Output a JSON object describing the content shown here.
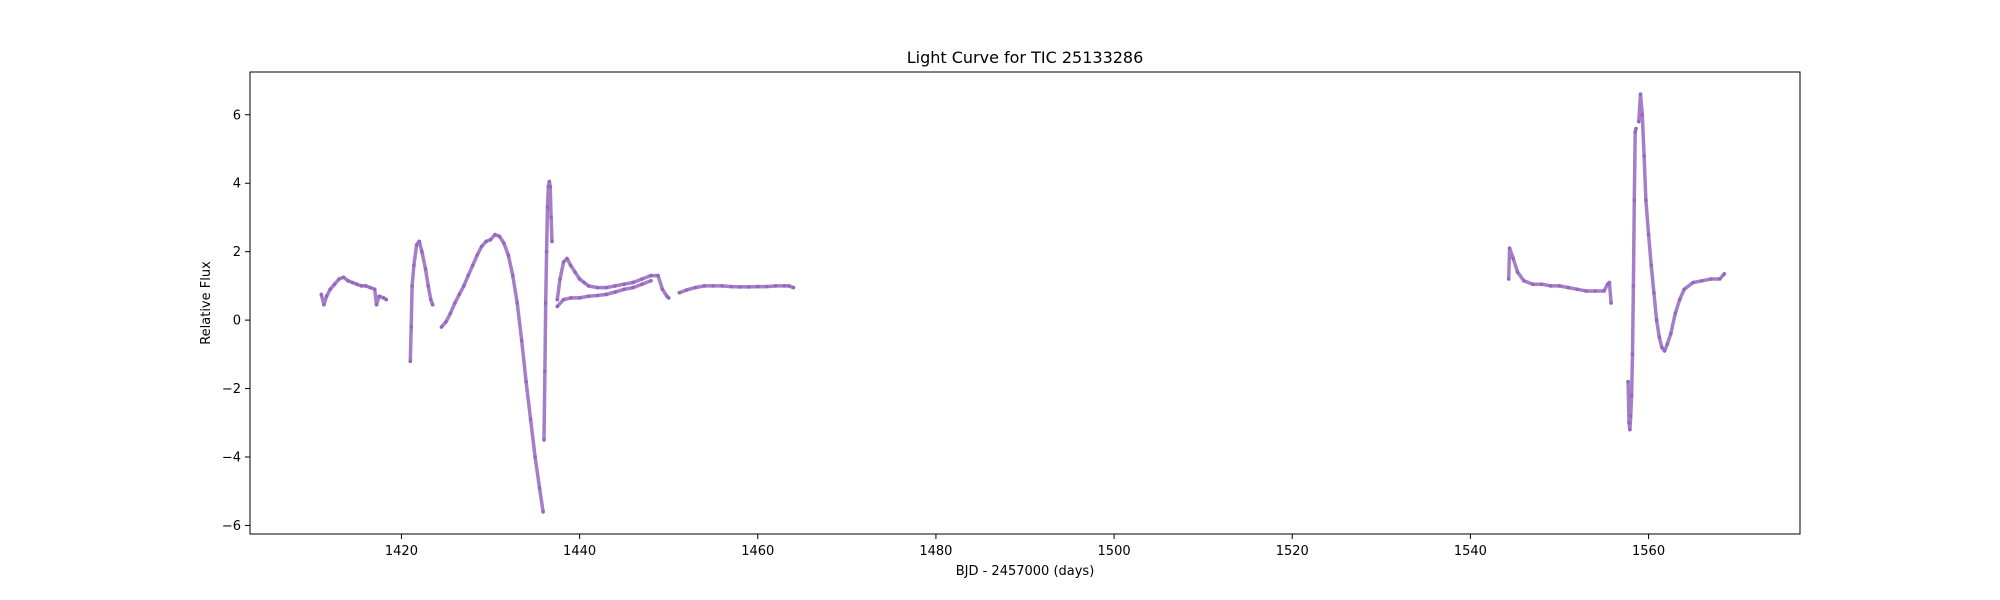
{
  "chart_data": {
    "type": "scatter",
    "title": "Light Curve for TIC 25133286",
    "xlabel": "BJD - 2457000 (days)",
    "ylabel": "Relative Flux",
    "xlim": [
      1403,
      1577
    ],
    "ylim": [
      -6.25,
      7.25
    ],
    "xticks": [
      1420,
      1440,
      1460,
      1480,
      1500,
      1520,
      1540,
      1560
    ],
    "yticks": [
      -6,
      -4,
      -2,
      0,
      2,
      4,
      6
    ],
    "grid": false,
    "legend": "none",
    "marker_color": "#9467bd",
    "series": [
      {
        "points": [
          [
            1411.0,
            0.75
          ],
          [
            1411.3,
            0.45
          ],
          [
            1411.6,
            0.7
          ],
          [
            1412.0,
            0.9
          ],
          [
            1412.5,
            1.05
          ],
          [
            1413.0,
            1.2
          ],
          [
            1413.5,
            1.25
          ],
          [
            1414.0,
            1.15
          ],
          [
            1414.5,
            1.1
          ],
          [
            1415.0,
            1.05
          ],
          [
            1415.5,
            1.0
          ],
          [
            1416.0,
            1.0
          ],
          [
            1416.5,
            0.95
          ],
          [
            1417.0,
            0.9
          ],
          [
            1417.2,
            0.45
          ],
          [
            1417.5,
            0.7
          ],
          [
            1418.0,
            0.65
          ],
          [
            1418.3,
            0.6
          ]
        ]
      },
      {
        "points": [
          [
            1421.0,
            -1.2
          ],
          [
            1421.1,
            -0.2
          ],
          [
            1421.2,
            1.0
          ],
          [
            1421.4,
            1.6
          ],
          [
            1421.7,
            2.2
          ],
          [
            1422.0,
            2.3
          ],
          [
            1422.3,
            2.0
          ],
          [
            1422.7,
            1.5
          ],
          [
            1423.0,
            1.0
          ],
          [
            1423.3,
            0.6
          ],
          [
            1423.5,
            0.45
          ]
        ]
      },
      {
        "points": [
          [
            1424.5,
            -0.2
          ],
          [
            1425.0,
            -0.05
          ],
          [
            1425.5,
            0.2
          ],
          [
            1426.0,
            0.5
          ],
          [
            1426.5,
            0.75
          ],
          [
            1427.0,
            1.0
          ],
          [
            1427.5,
            1.3
          ],
          [
            1428.0,
            1.6
          ],
          [
            1428.5,
            1.9
          ],
          [
            1429.0,
            2.15
          ],
          [
            1429.5,
            2.3
          ],
          [
            1430.0,
            2.35
          ],
          [
            1430.5,
            2.5
          ],
          [
            1431.0,
            2.45
          ],
          [
            1431.5,
            2.25
          ],
          [
            1432.0,
            1.9
          ],
          [
            1432.5,
            1.3
          ],
          [
            1433.0,
            0.5
          ],
          [
            1433.5,
            -0.6
          ],
          [
            1434.0,
            -1.8
          ],
          [
            1434.5,
            -2.9
          ],
          [
            1435.0,
            -4.0
          ],
          [
            1435.5,
            -4.9
          ],
          [
            1435.9,
            -5.6
          ]
        ]
      },
      {
        "points": [
          [
            1436.0,
            -3.5
          ],
          [
            1436.1,
            -1.5
          ],
          [
            1436.2,
            0.5
          ],
          [
            1436.3,
            2.0
          ],
          [
            1436.4,
            3.3
          ],
          [
            1436.5,
            3.9
          ],
          [
            1436.6,
            4.05
          ],
          [
            1436.7,
            3.9
          ],
          [
            1436.8,
            3.0
          ],
          [
            1436.9,
            2.3
          ]
        ]
      },
      {
        "points": [
          [
            1437.5,
            0.6
          ],
          [
            1437.8,
            1.2
          ],
          [
            1438.2,
            1.7
          ],
          [
            1438.6,
            1.8
          ],
          [
            1439.0,
            1.6
          ],
          [
            1439.5,
            1.4
          ],
          [
            1440.0,
            1.2
          ],
          [
            1440.5,
            1.1
          ],
          [
            1441.0,
            1.0
          ],
          [
            1442.0,
            0.95
          ],
          [
            1443.0,
            0.95
          ],
          [
            1444.0,
            1.0
          ],
          [
            1445.0,
            1.05
          ],
          [
            1446.0,
            1.1
          ],
          [
            1447.0,
            1.2
          ],
          [
            1448.0,
            1.3
          ],
          [
            1448.8,
            1.3
          ],
          [
            1449.3,
            0.9
          ],
          [
            1449.8,
            0.7
          ],
          [
            1450.0,
            0.65
          ]
        ]
      },
      {
        "points": [
          [
            1437.5,
            0.4
          ],
          [
            1438.2,
            0.6
          ],
          [
            1439.0,
            0.65
          ],
          [
            1440.0,
            0.65
          ],
          [
            1441.0,
            0.7
          ],
          [
            1442.0,
            0.72
          ],
          [
            1443.0,
            0.75
          ],
          [
            1444.0,
            0.82
          ],
          [
            1445.0,
            0.9
          ],
          [
            1446.0,
            0.95
          ],
          [
            1447.0,
            1.05
          ],
          [
            1448.0,
            1.15
          ]
        ]
      },
      {
        "points": [
          [
            1451.2,
            0.8
          ],
          [
            1452.0,
            0.88
          ],
          [
            1453.0,
            0.95
          ],
          [
            1454.0,
            1.0
          ],
          [
            1455.0,
            1.0
          ],
          [
            1456.0,
            1.0
          ],
          [
            1457.0,
            0.98
          ],
          [
            1458.0,
            0.97
          ],
          [
            1459.0,
            0.97
          ],
          [
            1460.0,
            0.98
          ],
          [
            1461.0,
            0.98
          ],
          [
            1462.0,
            1.0
          ],
          [
            1463.0,
            1.0
          ],
          [
            1463.5,
            1.0
          ],
          [
            1464.0,
            0.95
          ]
        ]
      },
      {
        "points": [
          [
            1544.3,
            1.2
          ],
          [
            1544.4,
            2.1
          ],
          [
            1544.8,
            1.8
          ],
          [
            1545.3,
            1.4
          ],
          [
            1546.0,
            1.15
          ],
          [
            1547.0,
            1.05
          ],
          [
            1548.0,
            1.05
          ],
          [
            1549.0,
            1.0
          ],
          [
            1550.0,
            1.0
          ],
          [
            1551.0,
            0.95
          ],
          [
            1552.0,
            0.9
          ],
          [
            1553.0,
            0.85
          ],
          [
            1554.0,
            0.85
          ],
          [
            1555.0,
            0.85
          ],
          [
            1555.4,
            1.05
          ],
          [
            1555.6,
            1.1
          ],
          [
            1555.8,
            0.5
          ]
        ]
      },
      {
        "points": [
          [
            1557.7,
            -1.8
          ],
          [
            1557.8,
            -3.0
          ],
          [
            1557.9,
            -3.2
          ],
          [
            1558.0,
            -2.8
          ],
          [
            1558.1,
            -2.2
          ],
          [
            1558.2,
            -1.0
          ],
          [
            1558.3,
            1.0
          ],
          [
            1558.4,
            3.5
          ],
          [
            1558.5,
            5.5
          ],
          [
            1558.6,
            5.6
          ]
        ]
      },
      {
        "points": [
          [
            1558.9,
            5.8
          ],
          [
            1559.1,
            6.6
          ],
          [
            1559.3,
            6.0
          ],
          [
            1559.5,
            4.8
          ],
          [
            1559.7,
            3.5
          ],
          [
            1560.0,
            2.5
          ],
          [
            1560.3,
            1.6
          ],
          [
            1560.6,
            0.8
          ],
          [
            1560.9,
            0.0
          ],
          [
            1561.2,
            -0.5
          ],
          [
            1561.5,
            -0.8
          ],
          [
            1561.8,
            -0.9
          ],
          [
            1562.1,
            -0.7
          ],
          [
            1562.5,
            -0.4
          ],
          [
            1563.0,
            0.2
          ],
          [
            1563.5,
            0.6
          ],
          [
            1564.0,
            0.9
          ],
          [
            1565.0,
            1.1
          ],
          [
            1566.0,
            1.15
          ],
          [
            1567.0,
            1.2
          ],
          [
            1568.0,
            1.2
          ],
          [
            1568.5,
            1.35
          ]
        ]
      }
    ]
  }
}
